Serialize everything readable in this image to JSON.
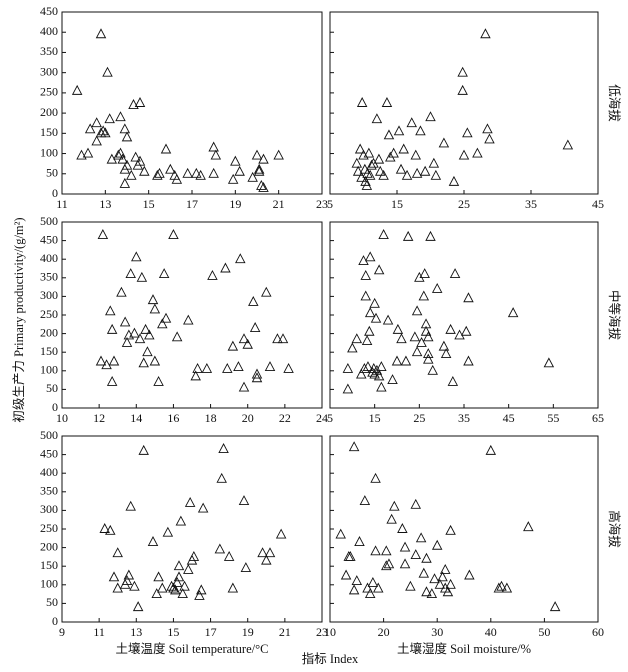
{
  "figure": {
    "ylabel": "初级生产力 Primary productivity/(g/m²)",
    "xlabel": "指标 Index"
  },
  "chart_data": [
    {
      "type": "scatter",
      "xlim": [
        11,
        23
      ],
      "xticks": [
        11,
        13,
        15,
        17,
        19,
        21,
        23
      ],
      "ylim": [
        0,
        450
      ],
      "yticks": [
        0,
        50,
        100,
        150,
        200,
        250,
        300,
        350,
        400,
        450
      ],
      "x": [
        11.7,
        11.9,
        12.2,
        12.3,
        12.6,
        12.6,
        12.8,
        12.8,
        12.9,
        13.0,
        13.1,
        13.2,
        13.3,
        13.6,
        13.7,
        13.7,
        13.8,
        13.9,
        13.9,
        13.9,
        14.0,
        14.0,
        14.2,
        14.3,
        14.4,
        14.5,
        14.6,
        14.6,
        14.8,
        15.4,
        15.5,
        15.8,
        16.0,
        16.3,
        16.2,
        16.8,
        17.2,
        17.4,
        18.0,
        18.1,
        18.0,
        18.9,
        19.0,
        19.2,
        19.8,
        20.0,
        20.1,
        20.1,
        20.2,
        20.3,
        20.3,
        21.0
      ],
      "values": [
        255,
        95,
        100,
        160,
        175,
        130,
        395,
        150,
        155,
        150,
        300,
        185,
        85,
        95,
        190,
        100,
        85,
        160,
        60,
        25,
        140,
        70,
        45,
        220,
        90,
        70,
        225,
        80,
        55,
        45,
        50,
        110,
        60,
        35,
        45,
        50,
        50,
        45,
        115,
        95,
        50,
        35,
        80,
        55,
        40,
        95,
        55,
        60,
        20,
        85,
        15,
        95
      ]
    },
    {
      "type": "scatter",
      "xlim": [
        5,
        45
      ],
      "xticks": [
        5,
        15,
        25,
        35,
        45
      ],
      "ylim": [
        0,
        450
      ],
      "yticks": [
        0,
        50,
        100,
        150,
        200,
        250,
        300,
        350,
        400,
        450
      ],
      "row_label": "低海拔",
      "x": [
        9,
        9.2,
        9.5,
        9.7,
        9.8,
        10.0,
        10.2,
        10.3,
        10.5,
        10.6,
        10.8,
        11.0,
        11.2,
        11.5,
        12.0,
        12.3,
        12.5,
        13.0,
        13.5,
        13.8,
        14.0,
        14.5,
        15.3,
        15.6,
        16,
        16.5,
        17.2,
        17.8,
        18,
        18.5,
        19.2,
        20,
        20.5,
        20.8,
        22,
        23.5,
        24.8,
        24.8,
        25,
        25.5,
        27.0,
        28.2,
        28.5,
        28.8,
        40.5
      ],
      "values": [
        75,
        55,
        110,
        40,
        225,
        95,
        60,
        30,
        20,
        50,
        100,
        45,
        70,
        75,
        185,
        85,
        55,
        45,
        225,
        145,
        90,
        100,
        155,
        60,
        110,
        45,
        175,
        95,
        50,
        155,
        55,
        190,
        75,
        45,
        125,
        30,
        300,
        255,
        95,
        150,
        100,
        395,
        160,
        135,
        120
      ]
    },
    {
      "type": "scatter",
      "xlim": [
        10,
        24
      ],
      "xticks": [
        10,
        12,
        14,
        16,
        18,
        20,
        22,
        24
      ],
      "ylim": [
        0,
        500
      ],
      "yticks": [
        0,
        50,
        100,
        150,
        200,
        250,
        300,
        350,
        400,
        450,
        500
      ],
      "x": [
        12.1,
        12.2,
        12.4,
        12.6,
        12.7,
        12.7,
        12.8,
        13.2,
        13.4,
        13.5,
        13.6,
        13.7,
        13.9,
        14.0,
        14.2,
        14.3,
        14.4,
        14.5,
        14.6,
        14.7,
        14.9,
        15.0,
        15.0,
        15.2,
        15.4,
        15.5,
        15.6,
        16.0,
        16.2,
        16.8,
        17.2,
        17.3,
        17.8,
        18.1,
        18.8,
        18.9,
        19.2,
        19.5,
        19.6,
        19.8,
        19.8,
        20.0,
        20.3,
        20.4,
        20.5,
        20.5,
        21.0,
        21.2,
        21.6,
        21.9,
        22.2
      ],
      "values": [
        125,
        465,
        115,
        260,
        210,
        70,
        125,
        310,
        230,
        175,
        195,
        360,
        200,
        405,
        185,
        350,
        120,
        210,
        150,
        195,
        290,
        265,
        125,
        70,
        225,
        360,
        240,
        465,
        190,
        235,
        85,
        105,
        105,
        355,
        375,
        105,
        165,
        110,
        400,
        185,
        55,
        170,
        285,
        215,
        80,
        90,
        310,
        110,
        185,
        185,
        105
      ]
    },
    {
      "type": "scatter",
      "xlim": [
        5,
        65
      ],
      "xticks": [
        5,
        15,
        25,
        35,
        45,
        55,
        65
      ],
      "ylim": [
        0,
        500
      ],
      "yticks": [
        0,
        50,
        100,
        150,
        200,
        250,
        300,
        350,
        400,
        450,
        500
      ],
      "row_label": "中等海拔",
      "x": [
        9,
        9,
        10,
        11,
        12,
        12.5,
        12.7,
        13,
        13,
        13.3,
        13.5,
        13.8,
        14,
        14,
        14.5,
        14.8,
        15,
        15,
        15.3,
        15.5,
        16,
        16,
        16.5,
        16.5,
        17,
        18,
        19,
        20,
        20.2,
        21,
        22,
        22.5,
        24,
        24.5,
        24.5,
        25,
        25.5,
        26,
        26.2,
        26.5,
        26.5,
        27,
        27,
        27,
        27.5,
        28,
        29,
        30.5,
        31,
        32,
        32.5,
        33,
        34,
        35.5,
        36,
        36,
        46,
        54
      ],
      "values": [
        105,
        50,
        160,
        185,
        90,
        395,
        105,
        300,
        355,
        180,
        110,
        205,
        255,
        405,
        95,
        105,
        90,
        280,
        240,
        100,
        370,
        85,
        110,
        55,
        465,
        235,
        75,
        125,
        210,
        185,
        125,
        460,
        190,
        150,
        260,
        350,
        175,
        300,
        360,
        225,
        205,
        190,
        145,
        130,
        460,
        100,
        320,
        165,
        145,
        210,
        70,
        360,
        195,
        205,
        125,
        295,
        255,
        120
      ]
    },
    {
      "type": "scatter",
      "xlim": [
        9,
        23
      ],
      "xticks": [
        9,
        11,
        13,
        15,
        17,
        19,
        21,
        23
      ],
      "ylim": [
        0,
        500
      ],
      "yticks": [
        0,
        50,
        100,
        150,
        200,
        250,
        300,
        350,
        400,
        450,
        500
      ],
      "xlabel": "土壤温度 Soil temperature/°C",
      "x": [
        11.3,
        11.6,
        11.8,
        12.0,
        12.0,
        12.4,
        12.5,
        12.6,
        12.7,
        12.9,
        13.1,
        13.4,
        13.9,
        14.1,
        14.2,
        14.4,
        14.7,
        14.9,
        15.0,
        15.1,
        15.2,
        15.3,
        15.3,
        15.4,
        15.5,
        15.6,
        15.8,
        15.9,
        16.0,
        16.1,
        16.4,
        16.5,
        16.6,
        17.5,
        17.6,
        17.7,
        18.0,
        18.2,
        18.8,
        18.9,
        19.8,
        20.0,
        20.2,
        20.8
      ],
      "values": [
        250,
        245,
        120,
        90,
        185,
        100,
        110,
        125,
        310,
        95,
        40,
        460,
        215,
        75,
        120,
        90,
        240,
        95,
        90,
        85,
        105,
        150,
        120,
        270,
        75,
        95,
        140,
        320,
        165,
        175,
        70,
        85,
        305,
        195,
        385,
        465,
        175,
        90,
        325,
        145,
        185,
        165,
        185,
        235
      ]
    },
    {
      "type": "scatter",
      "xlim": [
        10,
        60
      ],
      "xticks": [
        10,
        20,
        30,
        40,
        50,
        60
      ],
      "ylim": [
        0,
        500
      ],
      "yticks": [
        0,
        50,
        100,
        150,
        200,
        250,
        300,
        350,
        400,
        450,
        500
      ],
      "row_label": "高海拔",
      "xlabel": "土壤湿度 Soil moisture/%",
      "x": [
        12,
        13,
        13.5,
        13.8,
        14.5,
        14.5,
        15,
        15.5,
        16.5,
        17,
        17.5,
        18,
        18.5,
        18.5,
        19,
        20.5,
        20.5,
        21,
        21.5,
        22,
        23.5,
        24,
        24,
        25,
        26,
        26,
        27,
        27.5,
        28,
        28,
        29,
        29.5,
        30,
        30.5,
        31,
        31.5,
        31.5,
        32,
        32.5,
        32.5,
        36,
        40,
        41.5,
        42,
        43,
        47,
        52
      ],
      "values": [
        235,
        125,
        175,
        175,
        470,
        85,
        110,
        215,
        325,
        90,
        75,
        105,
        385,
        190,
        90,
        150,
        190,
        155,
        275,
        310,
        250,
        155,
        200,
        95,
        315,
        180,
        225,
        130,
        80,
        170,
        75,
        115,
        205,
        100,
        120,
        140,
        90,
        80,
        245,
        100,
        125,
        460,
        90,
        95,
        90,
        255,
        40
      ]
    }
  ]
}
